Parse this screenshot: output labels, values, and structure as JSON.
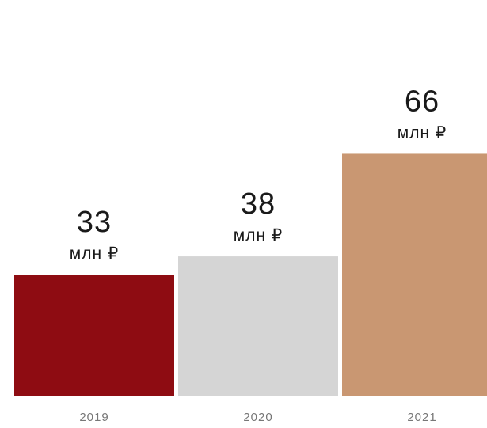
{
  "chart_data": {
    "type": "bar",
    "categories": [
      "2019",
      "2020",
      "2021"
    ],
    "values": [
      33,
      38,
      66
    ],
    "unit": "млн ₽",
    "colors": [
      "#8e0c12",
      "#d5d5d5",
      "#c99772"
    ],
    "ylim": [
      0,
      108
    ],
    "grid": false,
    "legend": "none"
  }
}
